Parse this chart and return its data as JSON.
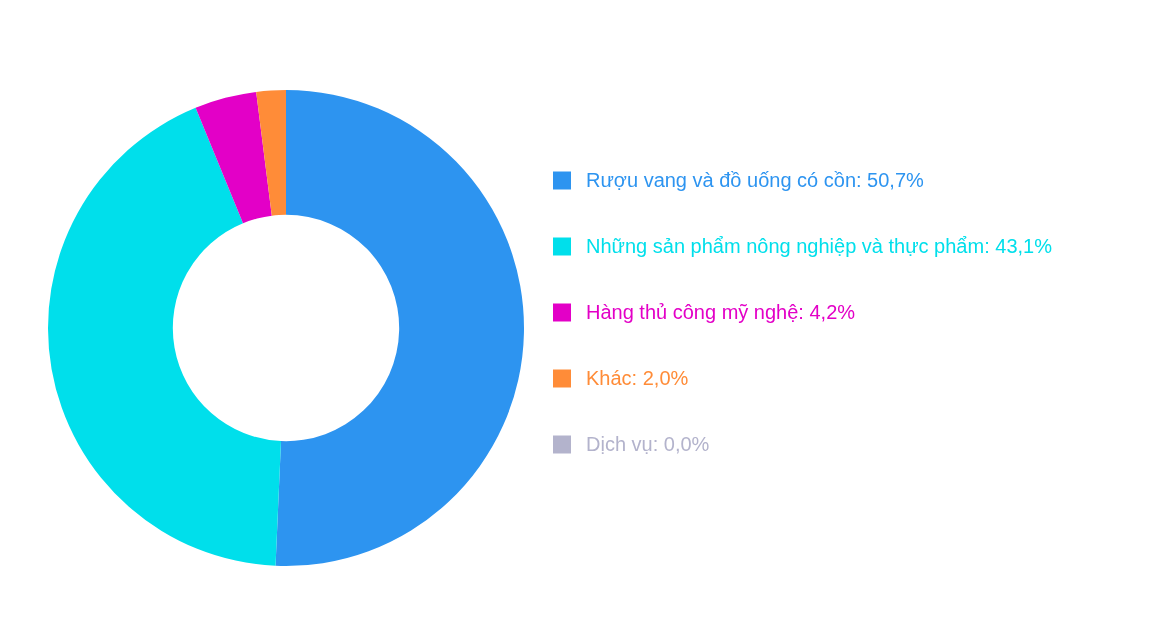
{
  "chart_data": {
    "type": "donut",
    "categories": [
      "Rượu vang và đồ uống có cồn: 50,7%",
      "Những sản phẩm nông nghiệp và thực phẩm: 43,1%",
      "Hàng thủ công mỹ nghệ: 4,2%",
      "Khác: 2,0%",
      "Dịch vụ: 0,0%"
    ],
    "values": [
      50.7,
      43.1,
      4.2,
      2.0,
      0.0
    ],
    "colors": [
      "#2d94f0",
      "#00dfeb",
      "#e300c7",
      "#ff8c38",
      "#b3b3cc"
    ],
    "legend": "right"
  }
}
